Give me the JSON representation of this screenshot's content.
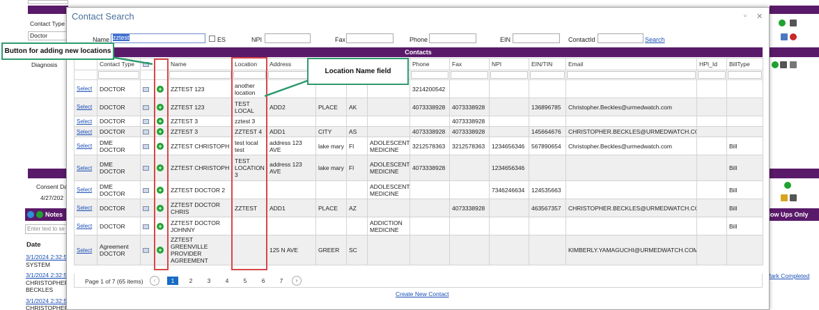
{
  "background": {
    "contact_type_label": "Contact Type",
    "contact_type_value": "Doctor",
    "diagnosis_label": "Diagnosis",
    "consent_label": "Consent Da",
    "consent_date": "4/27/202",
    "notes_label": "Notes",
    "notes_search_placeholder": "Enter text to se",
    "date_header": "Date",
    "notes": [
      {
        "date": "3/1/2024 2:32:5",
        "user": "SYSTEM"
      },
      {
        "date": "3/1/2024 2:32:5",
        "user": "CHRISTOPHER BECKLES"
      },
      {
        "date": "3/1/2024 2:32:5",
        "user": "CHRISTOPHER"
      }
    ],
    "follow_ups_label": "llow Ups Only",
    "mark_completed_label": "Mark Completed"
  },
  "dialog": {
    "title": "Contact Search",
    "search": {
      "name_label": "Name",
      "name_value": "zztest",
      "es_label": "ES",
      "npi_label": "NPI",
      "fax_label": "Fax",
      "phone_label": "Phone",
      "ein_label": "EIN",
      "contactid_label": "ContactId",
      "search_link": "Search"
    },
    "grid_title": "Contacts",
    "columns": [
      "",
      "Contact Type",
      "",
      "",
      "Name",
      "Location",
      "Address",
      "",
      "",
      "",
      "Phone",
      "Fax",
      "NPI",
      "EIN/TIN",
      "Email",
      "HPI_Id",
      "BillType"
    ],
    "select_label": "Select",
    "rows": [
      {
        "type": "DOCTOR",
        "name": "ZZTEST 123",
        "location": "another location",
        "address": "",
        "city": "",
        "state": "",
        "specialty": "",
        "phone": "3214200542",
        "fax": "",
        "npi": "",
        "ein": "",
        "email": "",
        "hpi": "",
        "bill": ""
      },
      {
        "type": "DOCTOR",
        "name": "ZZTEST 123",
        "location": "TEST LOCAL",
        "address": "ADD2",
        "city": "PLACE",
        "state": "AK",
        "specialty": "",
        "phone": "4073338928",
        "fax": "4073338928",
        "npi": "",
        "ein": "136896785",
        "email": "Christopher.Beckles@urmedwatch.com",
        "hpi": "",
        "bill": ""
      },
      {
        "type": "DOCTOR",
        "name": "ZZTEST 3",
        "location": "zztest 3",
        "address": "",
        "city": "",
        "state": "",
        "specialty": "",
        "phone": "",
        "fax": "4073338928",
        "npi": "",
        "ein": "",
        "email": "",
        "hpi": "",
        "bill": ""
      },
      {
        "type": "DOCTOR",
        "name": "ZZTEST 3",
        "location": "ZZTEST 4",
        "address": "ADD1",
        "city": "CITY",
        "state": "AS",
        "specialty": "",
        "phone": "4073338928",
        "fax": "4073338928",
        "npi": "",
        "ein": "145664676",
        "email": "CHRISTOPHER.BECKLES@URMEDWATCH.COM",
        "hpi": "",
        "bill": ""
      },
      {
        "type": "DME DOCTOR",
        "name": "ZZTEST CHRISTOPH",
        "location": "test local test",
        "address": "address 123 AVE",
        "city": "lake mary",
        "state": "Fl",
        "specialty": "ADOLESCENT MEDICINE",
        "phone": "3212578363",
        "fax": "3212578363",
        "npi": "1234656346",
        "ein": "567890654",
        "email": "Christopher.Beckles@urmedwatch.com",
        "hpi": "",
        "bill": "Bill"
      },
      {
        "type": "DME DOCTOR",
        "name": "ZZTEST CHRISTOPH",
        "location": "TEST LOCATION 3",
        "address": "address 123 AVE",
        "city": "lake mary",
        "state": "Fl",
        "specialty": "ADOLESCENT MEDICINE",
        "phone": "4073338928",
        "fax": "",
        "npi": "1234656346",
        "ein": "",
        "email": "",
        "hpi": "",
        "bill": "Bill"
      },
      {
        "type": "DME DOCTOR",
        "name": "ZZTEST DOCTOR 2",
        "location": "",
        "address": "",
        "city": "",
        "state": "",
        "specialty": "ADOLESCENT MEDICINE",
        "phone": "",
        "fax": "",
        "npi": "7346246634",
        "ein": "124535663",
        "email": "",
        "hpi": "",
        "bill": "Bill"
      },
      {
        "type": "DOCTOR",
        "name": "ZZTEST DOCTOR CHRIS",
        "location": "ZZTEST",
        "address": "ADD1",
        "city": "PLACE",
        "state": "AZ",
        "specialty": "",
        "phone": "",
        "fax": "4073338928",
        "npi": "",
        "ein": "463567357",
        "email": "CHRISTOPHER.BECKLES@URMEDWATCH.COM",
        "hpi": "",
        "bill": "Bill"
      },
      {
        "type": "DOCTOR",
        "name": "ZZTEST DOCTOR JOHNNY",
        "location": "",
        "address": "",
        "city": "",
        "state": "",
        "specialty": "ADDICTION MEDICINE",
        "phone": "",
        "fax": "",
        "npi": "",
        "ein": "",
        "email": "",
        "hpi": "",
        "bill": "Bill"
      },
      {
        "type": "Agreement DOCTOR",
        "name": "ZZTEST GREENVILLE PROVIDER AGREEMENT",
        "location": "",
        "address": "125 N AVE",
        "city": "GREER",
        "state": "SC",
        "specialty": "",
        "phone": "",
        "fax": "",
        "npi": "",
        "ein": "",
        "email": "KIMBERLY.YAMAGUCHI@URMEDWATCH.COM",
        "hpi": "",
        "bill": ""
      }
    ],
    "pager": {
      "info": "Page 1 of 7 (65 items)",
      "pages": [
        "1",
        "2",
        "3",
        "4",
        "5",
        "6",
        "7"
      ],
      "current": "1"
    },
    "create_link": "Create New Contact"
  },
  "annotations": {
    "add_location_callout": "Button for adding new locations",
    "location_name_callout": "Location Name field",
    "highlight_color": "#d64646",
    "callout_border_color": "#2d9a6e"
  }
}
